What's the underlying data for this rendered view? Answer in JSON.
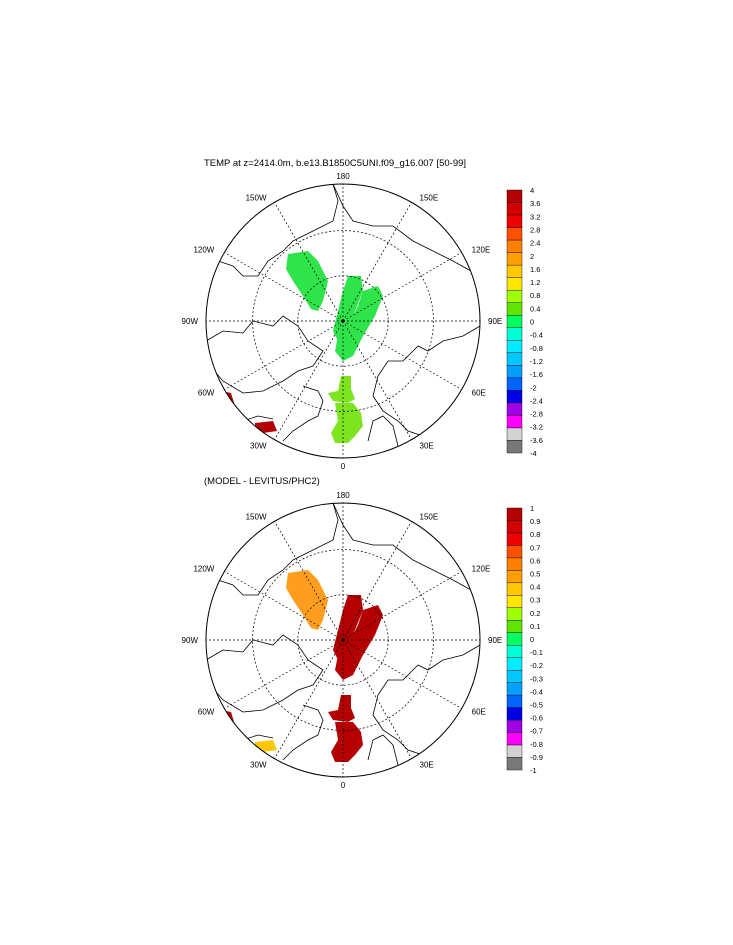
{
  "panels": [
    {
      "title": "TEMP at z=2414.0m, b.e13.B1850C5UNI.f09_g16.007 [50-99]",
      "lon_labels": {
        "top": "180",
        "bottom": "0",
        "left": "90W",
        "right": "90E",
        "upper_left_1": "150W",
        "upper_left_2": "120W",
        "upper_right_1": "150E",
        "upper_right_2": "120E",
        "lower_left_1": "60W",
        "lower_left_2": "30W",
        "lower_right_1": "60E",
        "lower_right_2": "30E"
      },
      "colorbar": {
        "labels": [
          "4",
          "3.6",
          "3.2",
          "2.8",
          "2.4",
          "2",
          "1.6",
          "1.2",
          "0.8",
          "0.4",
          "0",
          "-0.4",
          "-0.8",
          "-1.2",
          "-1.6",
          "-2",
          "-2.4",
          "-2.8",
          "-3.2",
          "-3.6",
          "-4"
        ],
        "colors": [
          "#b40000",
          "#d20000",
          "#f00000",
          "#ff5000",
          "#ff8000",
          "#ffa000",
          "#ffc800",
          "#ffe600",
          "#a0ff00",
          "#60e400",
          "#00ff60",
          "#00ffd2",
          "#00ecff",
          "#00c8ff",
          "#00a0ff",
          "#0064ff",
          "#0000e6",
          "#a000e6",
          "#ff00ff",
          "#d2d2d2",
          "#787878"
        ]
      },
      "fields": [
        {
          "region": "canada-basin-blob",
          "color": "#2ee44a"
        },
        {
          "region": "lomonosov-blob",
          "color": "#2ee44a"
        },
        {
          "region": "eurasian-basin-blob",
          "color": "#2ee44a"
        },
        {
          "region": "fram-strait-blob",
          "color": "#7ee420"
        },
        {
          "region": "nordic-seas-blob",
          "color": "#7ee420"
        },
        {
          "region": "labrador-blob",
          "color": "#b40000"
        },
        {
          "region": "north-atlantic-blob",
          "color": "#b40000"
        }
      ]
    },
    {
      "title": "(MODEL - LEVITUS/PHC2)",
      "lon_labels": {
        "top": "180",
        "bottom": "0",
        "left": "90W",
        "right": "90E",
        "upper_left_1": "150W",
        "upper_left_2": "120W",
        "upper_right_1": "150E",
        "upper_right_2": "120E",
        "lower_left_1": "60W",
        "lower_left_2": "30W",
        "lower_right_1": "60E",
        "lower_right_2": "30E"
      },
      "colorbar": {
        "labels": [
          "1",
          "0.9",
          "0.8",
          "0.7",
          "0.6",
          "0.5",
          "0.4",
          "0.3",
          "0.2",
          "0.1",
          "0",
          "-0.1",
          "-0.2",
          "-0.3",
          "-0.4",
          "-0.5",
          "-0.6",
          "-0.7",
          "-0.8",
          "-0.9",
          "-1"
        ],
        "colors": [
          "#b40000",
          "#d20000",
          "#f00000",
          "#ff5000",
          "#ff8000",
          "#ffa000",
          "#ffc800",
          "#ffe600",
          "#a0ff00",
          "#60e400",
          "#00ff60",
          "#00ffd2",
          "#00ecff",
          "#00c8ff",
          "#00a0ff",
          "#0064ff",
          "#0000e6",
          "#a000e6",
          "#ff00ff",
          "#d2d2d2",
          "#787878"
        ]
      },
      "fields": [
        {
          "region": "canada-basin-blob",
          "color": "#ff9e1e"
        },
        {
          "region": "lomonosov-blob",
          "color": "#b40000"
        },
        {
          "region": "eurasian-basin-blob",
          "color": "#b40000"
        },
        {
          "region": "fram-strait-blob",
          "color": "#b40000"
        },
        {
          "region": "nordic-seas-blob",
          "color": "#b40000"
        },
        {
          "region": "labrador-blob",
          "color": "#b40000"
        },
        {
          "region": "north-atlantic-blob",
          "color": "#ffc800"
        }
      ]
    }
  ]
}
